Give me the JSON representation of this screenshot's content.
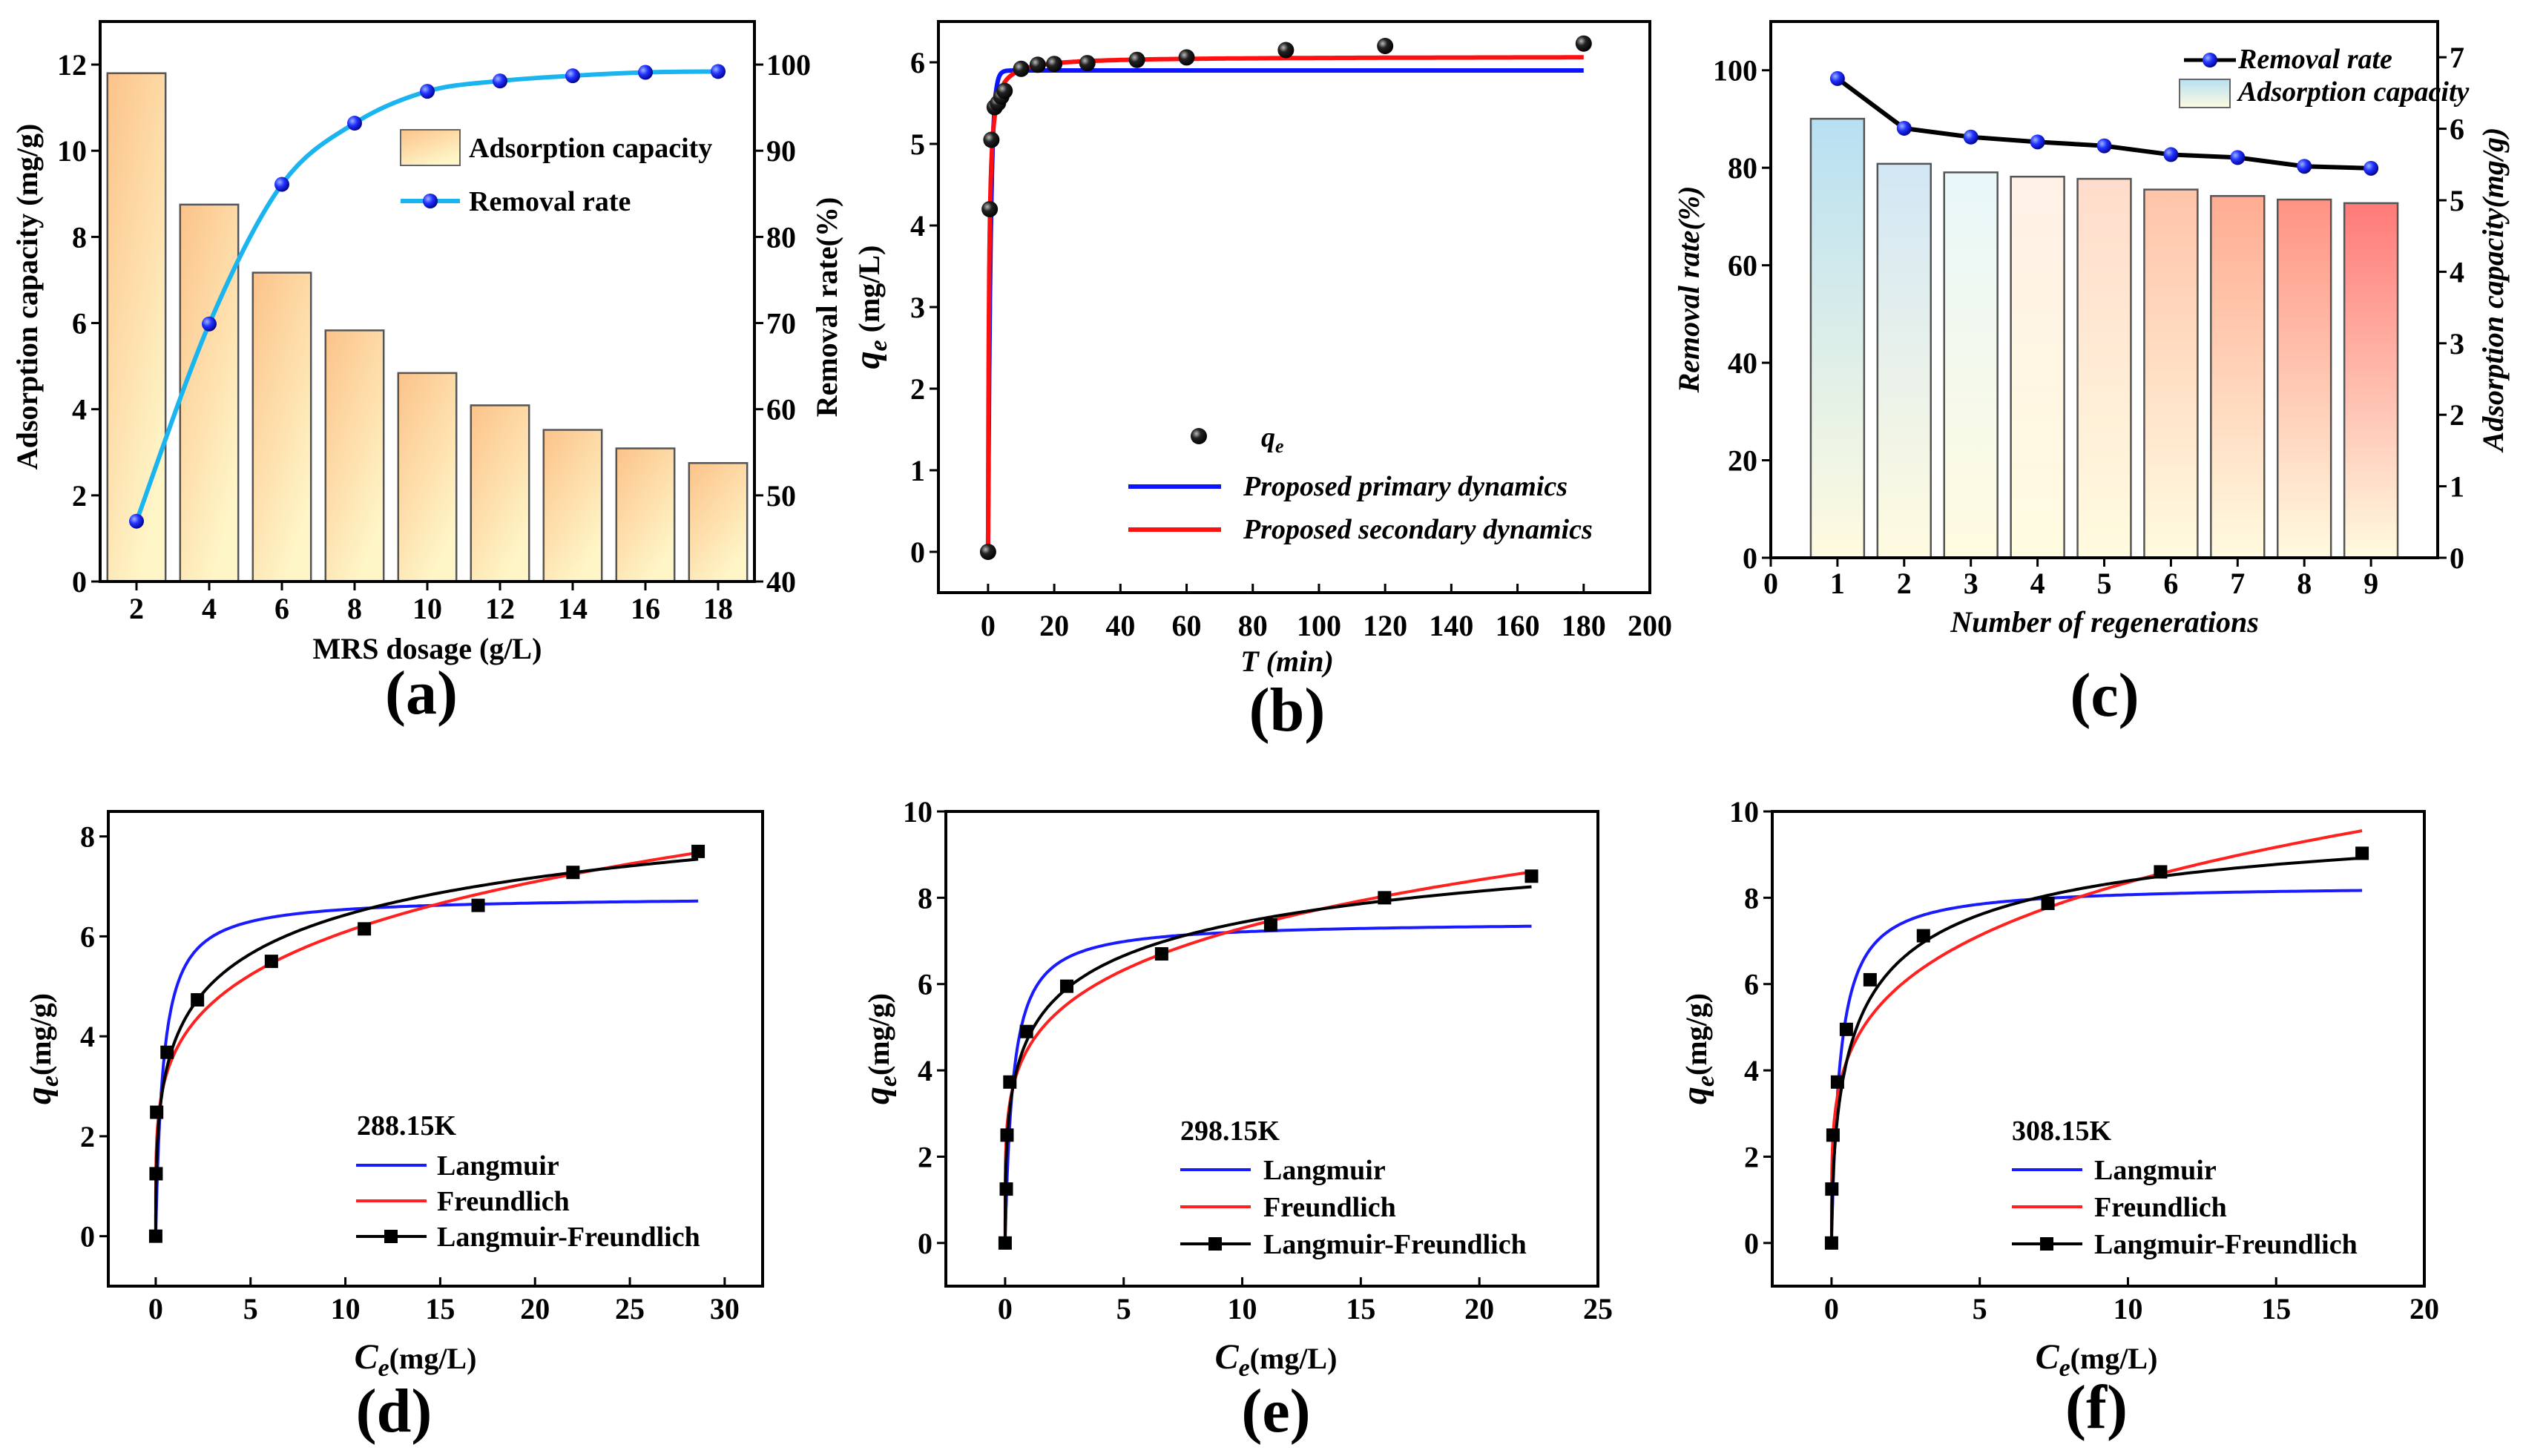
{
  "chart_data": [
    {
      "panel": "(a)",
      "type": "bar+line",
      "xlabel": "MRS dosage (g/L)",
      "ylabel": "Adsorption capacity (mg/g)",
      "ylabel_right": "",
      "categories": [
        2,
        4,
        6,
        8,
        10,
        12,
        14,
        16,
        18
      ],
      "xlim": [
        1,
        19
      ],
      "ylim": [
        0,
        13
      ],
      "ylim_right": [
        40,
        105
      ],
      "xticks": [
        2,
        4,
        6,
        8,
        10,
        12,
        14,
        16,
        18
      ],
      "yticks": [
        0,
        2,
        4,
        6,
        8,
        10,
        12
      ],
      "yticks_right": [
        40,
        50,
        60,
        70,
        80,
        90,
        100
      ],
      "series": [
        {
          "name": "Adsorption capacity",
          "kind": "bar",
          "axis": "left",
          "values": [
            11.8,
            8.75,
            7.17,
            5.83,
            4.84,
            4.09,
            3.52,
            3.09,
            2.75
          ],
          "color_top": "#fcc38a",
          "color_bottom": "#fff6c8"
        },
        {
          "name": "Removal rate",
          "kind": "line",
          "axis": "right",
          "values": [
            47.0,
            69.9,
            86.1,
            93.2,
            96.9,
            98.1,
            98.7,
            99.1,
            99.2
          ],
          "color": "#1ab4ee",
          "marker_color": "#1a1aff"
        }
      ],
      "legend": "top-right"
    },
    {
      "panel": "(b)",
      "type": "scatter+line",
      "xlabel": "T (min)",
      "ylabel_extra": "Removal rate(%)",
      "ylabel": {
        "symbol": "q",
        "sub": "e",
        "unit": " (mg/L)"
      },
      "xlim": [
        -15,
        200
      ],
      "ylim": [
        -0.5,
        6.5
      ],
      "xticks": [
        0,
        20,
        40,
        60,
        80,
        100,
        120,
        140,
        160,
        180,
        200
      ],
      "yticks": [
        0,
        1,
        2,
        3,
        4,
        5,
        6
      ],
      "points": {
        "name_symbol": "q",
        "name_sub": "e",
        "x": [
          0,
          0.5,
          1,
          2,
          3,
          4,
          5,
          10,
          15,
          20,
          30,
          45,
          60,
          90,
          120,
          180
        ],
        "y": [
          0,
          4.2,
          5.05,
          5.45,
          5.5,
          5.58,
          5.65,
          5.92,
          5.97,
          5.98,
          5.99,
          6.03,
          6.06,
          6.15,
          6.2,
          6.23
        ]
      },
      "fits": [
        {
          "name": "Proposed primary dynamics",
          "model": "pseudo-first-order",
          "qe": 5.9,
          "k": 1.3,
          "color": "#0a14ff"
        },
        {
          "name": "Proposed secondary dynamics",
          "model": "pseudo-second-order",
          "qe": 6.07,
          "k": 0.6,
          "color": "#ff1010"
        }
      ],
      "fit_xmax": 180,
      "legend": "bottom-right"
    },
    {
      "panel": "(c)",
      "type": "bar+line",
      "xlabel": "Number of regenerations",
      "ylabel": "Removal rate(%)",
      "ylabel_right": "Adsorption capacity(mg/g)",
      "categories": [
        1,
        2,
        3,
        4,
        5,
        6,
        7,
        8,
        9
      ],
      "xlim": [
        0,
        10
      ],
      "ylim": [
        0,
        110
      ],
      "ylim_right": [
        0,
        7.5
      ],
      "xticks": [
        0,
        1,
        2,
        3,
        4,
        5,
        6,
        7,
        8,
        9
      ],
      "yticks": [
        0,
        20,
        40,
        60,
        80,
        100
      ],
      "yticks_right": [
        0,
        1,
        2,
        3,
        4,
        5,
        6,
        7
      ],
      "series": [
        {
          "name": "Removal rate",
          "kind": "line",
          "axis": "left",
          "values": [
            98.3,
            88.1,
            86.3,
            85.3,
            84.5,
            82.7,
            82.1,
            80.3,
            79.9
          ],
          "color": "#000000",
          "marker_color": "#1a1aff"
        },
        {
          "name": "Adsorption capacity",
          "kind": "bar",
          "axis": "right",
          "values": [
            6.14,
            5.51,
            5.39,
            5.33,
            5.3,
            5.15,
            5.06,
            5.01,
            4.96
          ],
          "bar_top_colors": [
            "#b8e0f2",
            "#d2e7f5",
            "#e9f7fa",
            "#fff1e6",
            "#ffdccb",
            "#ffc4aa",
            "#ffac92",
            "#ff9384",
            "#ff7a78"
          ],
          "color_bottom": "#fffbe0"
        }
      ],
      "legend": "top-right"
    },
    {
      "panel": "(d)",
      "type": "scatter+line",
      "temperature": "288.15K",
      "xlabel": {
        "symbol": "C",
        "sub": "e",
        "unit": "(mg/L)"
      },
      "ylabel": {
        "symbol": "q",
        "sub": "e",
        "unit": "(mg/g)"
      },
      "xlim": [
        -2.5,
        32
      ],
      "ylim": [
        -1,
        8.5
      ],
      "xticks": [
        0,
        5,
        10,
        15,
        20,
        25,
        30
      ],
      "yticks": [
        0,
        2,
        4,
        6,
        8
      ],
      "points": {
        "x": [
          0,
          0.02,
          0.05,
          0.6,
          2.2,
          6.1,
          11,
          17,
          22,
          28.6
        ],
        "y": [
          0,
          1.25,
          2.48,
          3.68,
          4.73,
          5.5,
          6.15,
          6.62,
          7.28,
          7.7
        ]
      },
      "fits": [
        {
          "name": "Langmuir",
          "model": "langmuir",
          "qm": 6.8,
          "K": 2.5,
          "color": "#1a1aff"
        },
        {
          "name": "Freundlich",
          "model": "freundlich",
          "KF": 3.67,
          "n_inv": 0.22,
          "color": "#ff2020"
        },
        {
          "name": "Langmuir-Freundlich",
          "model": "sips",
          "qm": 11.3,
          "K": 0.2,
          "n": 0.4,
          "color": "#000000"
        }
      ],
      "fit_xmax": 28.6,
      "legend": "bottom-right"
    },
    {
      "panel": "(e)",
      "type": "scatter+line",
      "temperature": "298.15K",
      "xlabel": {
        "symbol": "C",
        "sub": "e",
        "unit": "(mg/L)"
      },
      "ylabel": {
        "symbol": "q",
        "sub": "e",
        "unit": "(mg/g)"
      },
      "xlim": [
        -2.5,
        25
      ],
      "ylim": [
        -1,
        10
      ],
      "xticks": [
        0,
        5,
        10,
        15,
        20,
        25
      ],
      "yticks": [
        0,
        2,
        4,
        6,
        8,
        10
      ],
      "points": {
        "x": [
          0,
          0.05,
          0.08,
          0.2,
          0.9,
          2.6,
          6.6,
          11.2,
          16,
          22.2
        ],
        "y": [
          0,
          1.25,
          2.5,
          3.73,
          4.9,
          5.95,
          6.7,
          7.37,
          8.0,
          8.5
        ]
      },
      "fits": [
        {
          "name": "Langmuir",
          "model": "langmuir",
          "qm": 7.45,
          "K": 3.0,
          "color": "#1a1aff"
        },
        {
          "name": "Freundlich",
          "model": "freundlich",
          "KF": 4.54,
          "n_inv": 0.206,
          "color": "#ff2020"
        },
        {
          "name": "Langmuir-Freundlich",
          "model": "sips",
          "qm": 11.7,
          "K": 0.4,
          "n": 0.4,
          "color": "#000000"
        }
      ],
      "fit_xmax": 22.2,
      "legend": "bottom-right"
    },
    {
      "panel": "(f)",
      "type": "scatter+line",
      "temperature": "308.15K",
      "xlabel": {
        "symbol": "C",
        "sub": "e",
        "unit": "(mg/L)"
      },
      "ylabel": {
        "symbol": "q",
        "sub": "e",
        "unit": "(mg/g)"
      },
      "xlim": [
        -2,
        20
      ],
      "ylim": [
        -1,
        10
      ],
      "xticks": [
        0,
        5,
        10,
        15,
        20
      ],
      "yticks": [
        0,
        2,
        4,
        6,
        8,
        10
      ],
      "points": {
        "x": [
          0,
          0.01,
          0.05,
          0.2,
          0.5,
          1.3,
          3.1,
          7.3,
          11.1,
          17.9
        ],
        "y": [
          0,
          1.25,
          2.5,
          3.73,
          4.95,
          6.1,
          7.12,
          7.87,
          8.6,
          9.03
        ]
      },
      "fits": [
        {
          "name": "Langmuir",
          "model": "langmuir",
          "qm": 8.3,
          "K": 3.5,
          "color": "#1a1aff"
        },
        {
          "name": "Freundlich",
          "model": "freundlich",
          "KF": 4.92,
          "n_inv": 0.23,
          "color": "#ff2020"
        },
        {
          "name": "Langmuir-Freundlich",
          "model": "sips",
          "qm": 10.5,
          "K": 1.0,
          "n": 0.6,
          "color": "#000000"
        }
      ],
      "fit_xmax": 17.9,
      "legend": "bottom-right"
    }
  ]
}
